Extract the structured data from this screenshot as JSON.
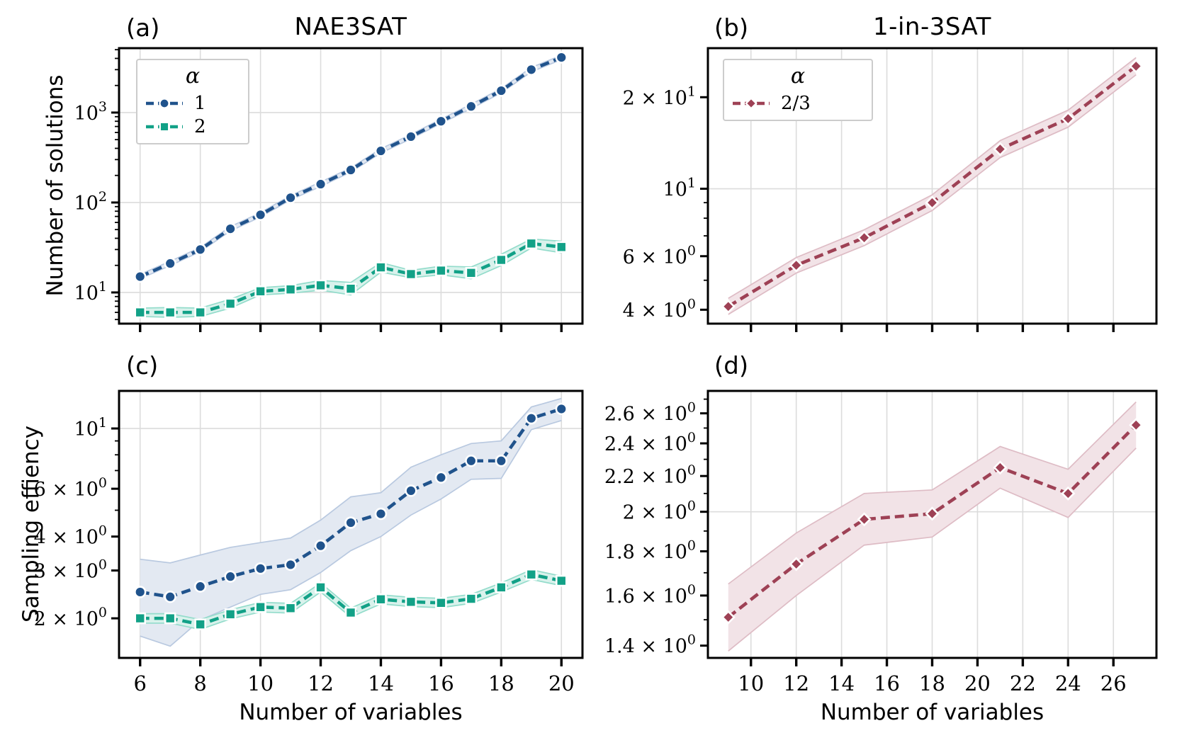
{
  "figure": {
    "titles": {
      "left": "NAE3SAT",
      "right": "1-in-3SAT"
    },
    "ylabels": {
      "top_left": "Number of solutions",
      "bottom_left": "Sampling effiency"
    },
    "xlabels": {
      "left": "Number of variables",
      "right": "Number of variables"
    }
  },
  "palette": {
    "blue": "#20538c",
    "green": "#12a187",
    "red": "#9e4155",
    "blue_band_fill": "#e3e9f2",
    "blue_band_edge": "#b9c9e0",
    "green_band_fill": "#d9f2ec",
    "green_band_edge": "#93dccb",
    "red_band_fill": "#f2e3e7",
    "red_band_edge": "#debcc5",
    "grid": "#dcdcdc",
    "spine": "#000000",
    "marker_edge": "#ffffff",
    "legend_border": "#cccccc"
  },
  "chart_data": [
    {
      "id": "a",
      "panel_label": "(a)",
      "title": "NAE3SAT",
      "type": "line",
      "xscale": "linear",
      "yscale": "log",
      "xlabel": "",
      "ylabel": "Number of solutions",
      "xlim": [
        5.3,
        20.7
      ],
      "ylim": [
        4.5,
        5200
      ],
      "x_ticks": [
        6,
        8,
        10,
        12,
        14,
        16,
        18,
        20
      ],
      "x_tick_labels_visible": false,
      "y_ticks": [
        {
          "value": 1000,
          "label": "10^3"
        },
        {
          "value": 100,
          "label": "10^2"
        },
        {
          "value": 10,
          "label": "10^1"
        }
      ],
      "y_minor_ticks": [
        5,
        6,
        7,
        8,
        9,
        20,
        30,
        40,
        50,
        60,
        70,
        80,
        90,
        200,
        300,
        400,
        500,
        600,
        700,
        800,
        900,
        2000,
        3000,
        4000,
        5000
      ],
      "grid_y_values": [
        10,
        100,
        1000
      ],
      "legend": {
        "title": "α",
        "entries": [
          {
            "label": "1",
            "series": 0
          },
          {
            "label": "2",
            "series": 1
          }
        ]
      },
      "series": [
        {
          "name": "alpha-1",
          "color": "#20538c",
          "marker": "circle",
          "band_fill": "#e3e9f2",
          "band_edge": "#b9c9e0",
          "x": [
            6,
            7,
            8,
            9,
            10,
            11,
            12,
            13,
            14,
            15,
            16,
            17,
            18,
            19,
            20
          ],
          "y": [
            15,
            21,
            30,
            51,
            73,
            113,
            160,
            230,
            375,
            540,
            800,
            1170,
            1750,
            3000,
            4100
          ],
          "band_lower": [
            14.2,
            19.9,
            28.4,
            48.3,
            69,
            107,
            151,
            218,
            355,
            511,
            757,
            1107,
            1655,
            2838,
            3878
          ],
          "band_upper": [
            15.9,
            22.2,
            31.7,
            53.9,
            77.2,
            119.5,
            169,
            243,
            396,
            571,
            846,
            1237,
            1850,
            3172,
            4334
          ]
        },
        {
          "name": "alpha-2",
          "color": "#12a187",
          "marker": "square",
          "band_fill": "#d9f2ec",
          "band_edge": "#93dccb",
          "x": [
            6,
            7,
            8,
            9,
            10,
            11,
            12,
            13,
            14,
            15,
            16,
            17,
            18,
            19,
            20
          ],
          "y": [
            6,
            6,
            6,
            7.5,
            10.3,
            10.8,
            12,
            11,
            19,
            16,
            17.5,
            16.5,
            23,
            35,
            32
          ],
          "band_lower": [
            5.4,
            5.3,
            5.4,
            6.7,
            9.4,
            9.8,
            10.6,
            9.4,
            16.8,
            14.6,
            15.7,
            14.2,
            19.9,
            31.2,
            27.6
          ],
          "band_upper": [
            6.7,
            6.8,
            6.7,
            8.4,
            11.3,
            11.9,
            13.6,
            12.9,
            21.5,
            17.6,
            19.6,
            19.2,
            26.6,
            39.3,
            37.1
          ]
        }
      ]
    },
    {
      "id": "b",
      "panel_label": "(b)",
      "title": "1-in-3SAT",
      "type": "line",
      "xscale": "linear",
      "yscale": "log",
      "xlabel": "",
      "ylabel": "",
      "xlim": [
        8.1,
        27.9
      ],
      "ylim": [
        3.6,
        29
      ],
      "x_ticks": [
        10,
        12,
        14,
        16,
        18,
        20,
        22,
        24,
        26
      ],
      "x_tick_labels_visible": false,
      "y_ticks": [
        {
          "value": 20,
          "label": "2 × 10^1"
        },
        {
          "value": 10,
          "label": "10^1"
        },
        {
          "value": 6,
          "label": "6 × 10^0"
        },
        {
          "value": 4,
          "label": "4 × 10^0"
        }
      ],
      "y_minor_ticks": [
        5,
        7,
        8,
        9
      ],
      "grid_y_values": [
        10
      ],
      "legend": {
        "title": "α",
        "entries": [
          {
            "label": "2/3",
            "series": 0
          }
        ]
      },
      "series": [
        {
          "name": "alpha-2-3",
          "color": "#9e4155",
          "marker": "diamond",
          "band_fill": "#f2e3e7",
          "band_edge": "#debcc5",
          "x": [
            9,
            12,
            15,
            18,
            21,
            24,
            27
          ],
          "y": [
            4.1,
            5.6,
            6.9,
            9.0,
            13.5,
            17.0,
            25.3
          ],
          "band_lower": [
            3.86,
            5.28,
            6.5,
            8.48,
            12.66,
            15.94,
            23.7
          ],
          "band_upper": [
            4.36,
            5.94,
            7.33,
            9.55,
            14.4,
            18.13,
            27.0
          ]
        }
      ]
    },
    {
      "id": "c",
      "panel_label": "(c)",
      "title": "",
      "type": "line",
      "xscale": "linear",
      "yscale": "log",
      "xlabel": "Number of variables",
      "ylabel": "Sampling effiency",
      "xlim": [
        5.3,
        20.7
      ],
      "ylim": [
        1.43,
        13.75
      ],
      "x_ticks": [
        6,
        8,
        10,
        12,
        14,
        16,
        18,
        20
      ],
      "x_tick_labels_visible": true,
      "y_ticks": [
        {
          "value": 10,
          "label": "10^1"
        },
        {
          "value": 6,
          "label": "6 × 10^0"
        },
        {
          "value": 4,
          "label": "4 × 10^0"
        },
        {
          "value": 3,
          "label": "3 × 10^0"
        },
        {
          "value": 2,
          "label": "2 × 10^0"
        }
      ],
      "y_minor_ticks": [
        5,
        7,
        8,
        9
      ],
      "grid_y_values": [
        10
      ],
      "legend": null,
      "series": [
        {
          "name": "alpha-1",
          "color": "#20538c",
          "marker": "circle",
          "band_fill": "#e3e9f2",
          "band_edge": "#b9c9e0",
          "x": [
            6,
            7,
            8,
            9,
            10,
            11,
            12,
            13,
            14,
            15,
            16,
            17,
            18,
            19,
            20
          ],
          "y": [
            2.5,
            2.4,
            2.62,
            2.85,
            3.05,
            3.15,
            3.7,
            4.5,
            4.85,
            5.9,
            6.6,
            7.6,
            7.6,
            10.9,
            11.8
          ],
          "band_lower": [
            1.72,
            1.58,
            1.97,
            2.2,
            2.45,
            2.55,
            2.95,
            3.55,
            4.0,
            4.8,
            5.5,
            6.5,
            6.55,
            9.9,
            10.7
          ],
          "band_upper": [
            3.3,
            3.2,
            3.42,
            3.65,
            3.8,
            3.95,
            4.6,
            5.6,
            5.8,
            7.2,
            8.0,
            8.8,
            9.0,
            12.0,
            12.9
          ]
        },
        {
          "name": "alpha-2",
          "color": "#12a187",
          "marker": "square",
          "band_fill": "#d9f2ec",
          "band_edge": "#93dccb",
          "x": [
            6,
            7,
            8,
            9,
            10,
            11,
            12,
            13,
            14,
            15,
            16,
            17,
            18,
            19,
            20
          ],
          "y": [
            2.0,
            2.0,
            1.9,
            2.07,
            2.2,
            2.18,
            2.6,
            2.1,
            2.35,
            2.3,
            2.28,
            2.36,
            2.6,
            2.9,
            2.75
          ],
          "band_lower": [
            1.92,
            1.92,
            1.82,
            1.99,
            2.11,
            2.09,
            2.5,
            2.02,
            2.26,
            2.21,
            2.19,
            2.27,
            2.5,
            2.78,
            2.64
          ],
          "band_upper": [
            2.08,
            2.08,
            1.98,
            2.15,
            2.29,
            2.27,
            2.7,
            2.18,
            2.44,
            2.39,
            2.37,
            2.45,
            2.7,
            3.02,
            2.86
          ]
        }
      ]
    },
    {
      "id": "d",
      "panel_label": "(d)",
      "title": "",
      "type": "line",
      "xscale": "linear",
      "yscale": "log",
      "xlabel": "Number of variables",
      "ylabel": "",
      "xlim": [
        8.1,
        27.9
      ],
      "ylim": [
        1.355,
        2.76
      ],
      "x_ticks": [
        10,
        12,
        14,
        16,
        18,
        20,
        22,
        24,
        26
      ],
      "x_tick_labels_visible": true,
      "y_ticks": [
        {
          "value": 2.6,
          "label": "2.6 × 10^0"
        },
        {
          "value": 2.4,
          "label": "2.4 × 10^0"
        },
        {
          "value": 2.2,
          "label": "2.2 × 10^0"
        },
        {
          "value": 2.0,
          "label": "2 × 10^0"
        },
        {
          "value": 1.8,
          "label": "1.8 × 10^0"
        },
        {
          "value": 1.6,
          "label": "1.6 × 10^0"
        },
        {
          "value": 1.4,
          "label": "1.4 × 10^0"
        }
      ],
      "y_minor_ticks": [
        1.5,
        1.7,
        1.9,
        2.1,
        2.3,
        2.5,
        2.7
      ],
      "grid_y_values": [
        2
      ],
      "legend": null,
      "series": [
        {
          "name": "alpha-2-3",
          "color": "#9e4155",
          "marker": "diamond",
          "band_fill": "#f2e3e7",
          "band_edge": "#debcc5",
          "x": [
            9,
            12,
            15,
            18,
            21,
            24,
            27
          ],
          "y": [
            1.51,
            1.74,
            1.96,
            1.99,
            2.25,
            2.1,
            2.52
          ],
          "band_lower": [
            1.38,
            1.6,
            1.83,
            1.87,
            2.13,
            1.97,
            2.37
          ],
          "band_upper": [
            1.65,
            1.89,
            2.1,
            2.12,
            2.38,
            2.24,
            2.68
          ]
        }
      ]
    }
  ]
}
